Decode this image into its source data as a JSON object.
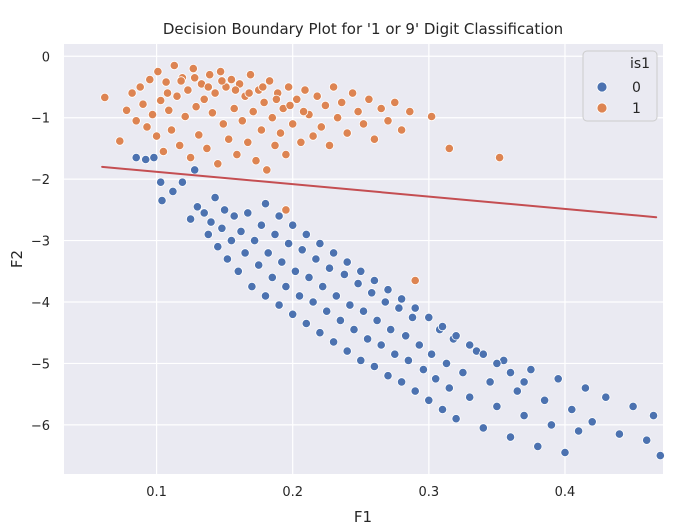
{
  "chart_data": {
    "type": "scatter",
    "title": "Decision Boundary Plot for '1 or 9' Digit Classification",
    "xlabel": "F1",
    "ylabel": "F2",
    "xlim": [
      0.032,
      0.472
    ],
    "ylim": [
      -6.8,
      0.2
    ],
    "xticks": [
      0.1,
      0.2,
      0.3,
      0.4
    ],
    "yticks": [
      0,
      -1,
      -2,
      -3,
      -4,
      -5,
      -6
    ],
    "grid": true,
    "background": "#eaeaf2",
    "legend": {
      "title": "is1",
      "position": "top-right",
      "entries": [
        {
          "label": "0",
          "color": "#4c72b0"
        },
        {
          "label": "1",
          "color": "#dd8452"
        }
      ]
    },
    "series": [
      {
        "name": "0",
        "color": "#4c72b0",
        "points": [
          [
            0.085,
            -1.65
          ],
          [
            0.092,
            -1.68
          ],
          [
            0.098,
            -1.65
          ],
          [
            0.103,
            -2.05
          ],
          [
            0.104,
            -2.35
          ],
          [
            0.112,
            -2.2
          ],
          [
            0.119,
            -2.05
          ],
          [
            0.125,
            -2.65
          ],
          [
            0.128,
            -1.85
          ],
          [
            0.13,
            -2.45
          ],
          [
            0.135,
            -2.55
          ],
          [
            0.138,
            -2.9
          ],
          [
            0.14,
            -2.7
          ],
          [
            0.143,
            -2.3
          ],
          [
            0.145,
            -3.1
          ],
          [
            0.148,
            -2.8
          ],
          [
            0.15,
            -2.5
          ],
          [
            0.152,
            -3.3
          ],
          [
            0.155,
            -3.0
          ],
          [
            0.157,
            -2.6
          ],
          [
            0.16,
            -3.5
          ],
          [
            0.162,
            -2.85
          ],
          [
            0.165,
            -3.2
          ],
          [
            0.167,
            -2.55
          ],
          [
            0.17,
            -3.75
          ],
          [
            0.172,
            -3.0
          ],
          [
            0.175,
            -3.4
          ],
          [
            0.177,
            -2.75
          ],
          [
            0.18,
            -3.9
          ],
          [
            0.182,
            -3.2
          ],
          [
            0.185,
            -3.6
          ],
          [
            0.187,
            -2.9
          ],
          [
            0.19,
            -4.05
          ],
          [
            0.192,
            -3.35
          ],
          [
            0.195,
            -3.75
          ],
          [
            0.197,
            -3.05
          ],
          [
            0.2,
            -4.2
          ],
          [
            0.202,
            -3.5
          ],
          [
            0.205,
            -3.9
          ],
          [
            0.207,
            -3.15
          ],
          [
            0.21,
            -4.35
          ],
          [
            0.212,
            -3.6
          ],
          [
            0.215,
            -4.0
          ],
          [
            0.217,
            -3.3
          ],
          [
            0.22,
            -4.5
          ],
          [
            0.222,
            -3.75
          ],
          [
            0.225,
            -4.15
          ],
          [
            0.227,
            -3.45
          ],
          [
            0.23,
            -4.65
          ],
          [
            0.232,
            -3.9
          ],
          [
            0.235,
            -4.3
          ],
          [
            0.238,
            -3.55
          ],
          [
            0.24,
            -4.8
          ],
          [
            0.242,
            -4.05
          ],
          [
            0.245,
            -4.45
          ],
          [
            0.248,
            -3.7
          ],
          [
            0.25,
            -4.95
          ],
          [
            0.252,
            -4.15
          ],
          [
            0.255,
            -4.6
          ],
          [
            0.258,
            -3.85
          ],
          [
            0.26,
            -5.05
          ],
          [
            0.262,
            -4.3
          ],
          [
            0.265,
            -4.7
          ],
          [
            0.268,
            -4.0
          ],
          [
            0.27,
            -5.2
          ],
          [
            0.272,
            -4.45
          ],
          [
            0.275,
            -4.85
          ],
          [
            0.278,
            -4.1
          ],
          [
            0.28,
            -5.3
          ],
          [
            0.283,
            -4.55
          ],
          [
            0.285,
            -4.95
          ],
          [
            0.288,
            -4.25
          ],
          [
            0.29,
            -5.45
          ],
          [
            0.293,
            -4.7
          ],
          [
            0.296,
            -5.1
          ],
          [
            0.3,
            -5.6
          ],
          [
            0.302,
            -4.85
          ],
          [
            0.305,
            -5.25
          ],
          [
            0.308,
            -4.45
          ],
          [
            0.31,
            -5.75
          ],
          [
            0.313,
            -5.0
          ],
          [
            0.315,
            -5.4
          ],
          [
            0.318,
            -4.6
          ],
          [
            0.32,
            -5.9
          ],
          [
            0.325,
            -5.15
          ],
          [
            0.33,
            -5.55
          ],
          [
            0.335,
            -4.8
          ],
          [
            0.34,
            -6.05
          ],
          [
            0.345,
            -5.3
          ],
          [
            0.35,
            -5.7
          ],
          [
            0.355,
            -4.95
          ],
          [
            0.36,
            -6.2
          ],
          [
            0.365,
            -5.45
          ],
          [
            0.37,
            -5.85
          ],
          [
            0.375,
            -5.1
          ],
          [
            0.38,
            -6.35
          ],
          [
            0.385,
            -5.6
          ],
          [
            0.39,
            -6.0
          ],
          [
            0.395,
            -5.25
          ],
          [
            0.4,
            -6.45
          ],
          [
            0.405,
            -5.75
          ],
          [
            0.41,
            -6.1
          ],
          [
            0.415,
            -5.4
          ],
          [
            0.42,
            -5.95
          ],
          [
            0.43,
            -5.55
          ],
          [
            0.44,
            -6.15
          ],
          [
            0.45,
            -5.7
          ],
          [
            0.46,
            -6.25
          ],
          [
            0.465,
            -5.85
          ],
          [
            0.47,
            -6.5
          ],
          [
            0.18,
            -2.4
          ],
          [
            0.19,
            -2.6
          ],
          [
            0.2,
            -2.75
          ],
          [
            0.21,
            -2.9
          ],
          [
            0.22,
            -3.05
          ],
          [
            0.23,
            -3.2
          ],
          [
            0.24,
            -3.35
          ],
          [
            0.25,
            -3.5
          ],
          [
            0.26,
            -3.65
          ],
          [
            0.27,
            -3.8
          ],
          [
            0.28,
            -3.95
          ],
          [
            0.29,
            -4.1
          ],
          [
            0.3,
            -4.25
          ],
          [
            0.31,
            -4.4
          ],
          [
            0.32,
            -4.55
          ],
          [
            0.33,
            -4.7
          ],
          [
            0.34,
            -4.85
          ],
          [
            0.35,
            -5.0
          ],
          [
            0.36,
            -5.15
          ],
          [
            0.37,
            -5.3
          ]
        ]
      },
      {
        "name": "1",
        "color": "#dd8452",
        "points": [
          [
            0.062,
            -0.67
          ],
          [
            0.073,
            -1.38
          ],
          [
            0.078,
            -0.88
          ],
          [
            0.082,
            -0.6
          ],
          [
            0.085,
            -1.05
          ],
          [
            0.088,
            -0.5
          ],
          [
            0.09,
            -0.78
          ],
          [
            0.093,
            -1.15
          ],
          [
            0.095,
            -0.38
          ],
          [
            0.097,
            -0.95
          ],
          [
            0.1,
            -1.3
          ],
          [
            0.101,
            -0.25
          ],
          [
            0.103,
            -0.72
          ],
          [
            0.105,
            -1.55
          ],
          [
            0.107,
            -0.42
          ],
          [
            0.109,
            -0.88
          ],
          [
            0.111,
            -1.2
          ],
          [
            0.113,
            -0.15
          ],
          [
            0.115,
            -0.65
          ],
          [
            0.117,
            -1.45
          ],
          [
            0.119,
            -0.35
          ],
          [
            0.121,
            -0.98
          ],
          [
            0.123,
            -0.55
          ],
          [
            0.125,
            -1.65
          ],
          [
            0.127,
            -0.2
          ],
          [
            0.129,
            -0.82
          ],
          [
            0.131,
            -1.28
          ],
          [
            0.133,
            -0.45
          ],
          [
            0.135,
            -0.7
          ],
          [
            0.137,
            -1.5
          ],
          [
            0.139,
            -0.3
          ],
          [
            0.141,
            -0.92
          ],
          [
            0.143,
            -0.6
          ],
          [
            0.145,
            -1.75
          ],
          [
            0.147,
            -0.25
          ],
          [
            0.149,
            -1.1
          ],
          [
            0.151,
            -0.5
          ],
          [
            0.153,
            -1.35
          ],
          [
            0.155,
            -0.38
          ],
          [
            0.157,
            -0.85
          ],
          [
            0.159,
            -1.6
          ],
          [
            0.161,
            -0.45
          ],
          [
            0.163,
            -1.05
          ],
          [
            0.165,
            -0.65
          ],
          [
            0.167,
            -1.4
          ],
          [
            0.169,
            -0.3
          ],
          [
            0.171,
            -0.9
          ],
          [
            0.173,
            -1.7
          ],
          [
            0.175,
            -0.55
          ],
          [
            0.177,
            -1.2
          ],
          [
            0.179,
            -0.75
          ],
          [
            0.181,
            -1.85
          ],
          [
            0.183,
            -0.4
          ],
          [
            0.185,
            -1.0
          ],
          [
            0.187,
            -1.45
          ],
          [
            0.189,
            -0.6
          ],
          [
            0.191,
            -1.25
          ],
          [
            0.193,
            -0.85
          ],
          [
            0.195,
            -1.6
          ],
          [
            0.197,
            -0.5
          ],
          [
            0.2,
            -1.1
          ],
          [
            0.203,
            -0.7
          ],
          [
            0.206,
            -1.4
          ],
          [
            0.209,
            -0.55
          ],
          [
            0.212,
            -0.95
          ],
          [
            0.215,
            -1.3
          ],
          [
            0.218,
            -0.65
          ],
          [
            0.221,
            -1.15
          ],
          [
            0.224,
            -0.8
          ],
          [
            0.227,
            -1.45
          ],
          [
            0.23,
            -0.5
          ],
          [
            0.233,
            -1.0
          ],
          [
            0.236,
            -0.75
          ],
          [
            0.24,
            -1.25
          ],
          [
            0.244,
            -0.6
          ],
          [
            0.248,
            -0.9
          ],
          [
            0.252,
            -1.1
          ],
          [
            0.256,
            -0.7
          ],
          [
            0.26,
            -1.35
          ],
          [
            0.265,
            -0.85
          ],
          [
            0.27,
            -1.05
          ],
          [
            0.275,
            -0.75
          ],
          [
            0.28,
            -1.2
          ],
          [
            0.286,
            -0.9
          ],
          [
            0.302,
            -0.98
          ],
          [
            0.315,
            -1.5
          ],
          [
            0.352,
            -1.65
          ],
          [
            0.195,
            -2.5
          ],
          [
            0.29,
            -3.65
          ],
          [
            0.108,
            -0.6
          ],
          [
            0.118,
            -0.4
          ],
          [
            0.128,
            -0.35
          ],
          [
            0.138,
            -0.5
          ],
          [
            0.148,
            -0.4
          ],
          [
            0.158,
            -0.55
          ],
          [
            0.168,
            -0.6
          ],
          [
            0.178,
            -0.5
          ],
          [
            0.188,
            -0.7
          ],
          [
            0.198,
            -0.8
          ],
          [
            0.208,
            -0.9
          ]
        ]
      }
    ],
    "decision_boundary": {
      "color": "#c44e52",
      "x": [
        0.06,
        0.467
      ],
      "y": [
        -1.8,
        -2.62
      ]
    }
  }
}
